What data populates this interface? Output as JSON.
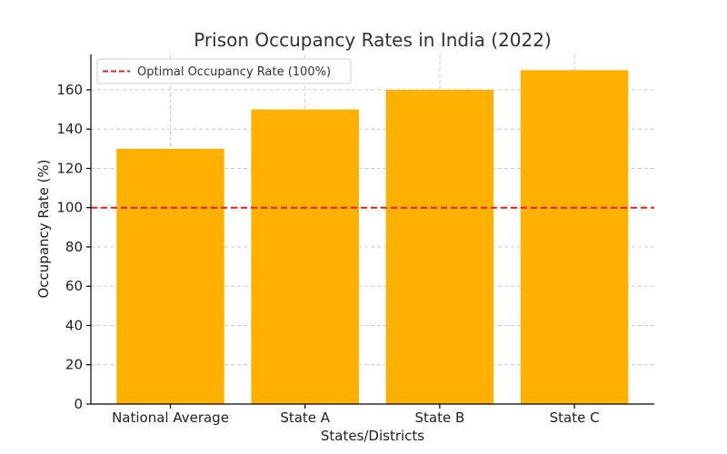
{
  "chart_data": {
    "type": "bar",
    "title": "Prison Occupancy Rates in India (2022)",
    "xlabel": "States/Districts",
    "ylabel": "Occupancy Rate (%)",
    "categories": [
      "National Average",
      "State A",
      "State B",
      "State C"
    ],
    "values": [
      130,
      150,
      160,
      170
    ],
    "ylim": [
      0,
      178
    ],
    "yticks": [
      0,
      20,
      40,
      60,
      80,
      100,
      120,
      140,
      160
    ],
    "grid": true,
    "bar_color": "#FFB000",
    "reference_line": {
      "value": 100,
      "label": "Optimal Occupancy Rate (100%)",
      "color": "#E8201C",
      "style": "dashed"
    },
    "legend_position": "top-left"
  }
}
